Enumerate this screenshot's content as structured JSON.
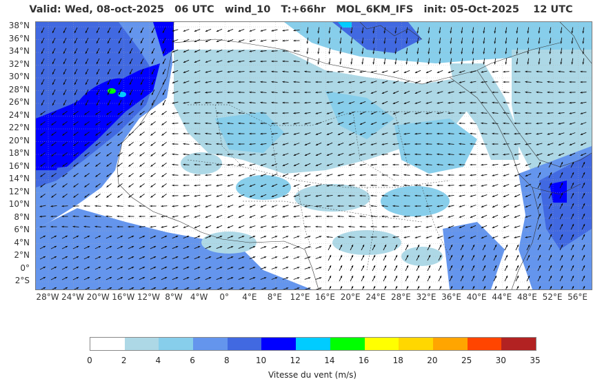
{
  "title": "Valid: Wed, 08-oct-2025   06 UTC   wind_10   T:+66hr   MOL_6KM_IFS   init: 05-Oct-2025    12 UTC",
  "map": {
    "lat_labels": [
      "38°N",
      "36°N",
      "34°N",
      "32°N",
      "30°N",
      "28°N",
      "26°N",
      "24°N",
      "22°N",
      "20°N",
      "18°N",
      "16°N",
      "14°N",
      "12°N",
      "10°N",
      "8°N",
      "6°N",
      "4°N",
      "2°N",
      "0°",
      "2°S"
    ],
    "lon_labels": [
      "28°W",
      "24°W",
      "20°W",
      "16°W",
      "12°W",
      "8°W",
      "4°W",
      "0°",
      "4°E",
      "8°E",
      "12°E",
      "16°E",
      "20°E",
      "24°E",
      "28°E",
      "32°E",
      "36°E",
      "40°E",
      "44°E",
      "48°E",
      "52°E",
      "56°E"
    ],
    "colors": {
      "land_calm": "#ffffff",
      "light": "#add8e6",
      "sky": "#87ceeb",
      "medium": "#6495ed",
      "royal": "#4169e1",
      "blue": "#0000ff",
      "cyan": "#00ccff",
      "green": "#00ff00"
    }
  },
  "colorbar": {
    "title": "Vitesse du vent (m/s)",
    "ticks": [
      "0",
      "2",
      "4",
      "6",
      "8",
      "10",
      "12",
      "14",
      "16",
      "18",
      "20",
      "25",
      "30",
      "35"
    ],
    "colors": [
      "#ffffff",
      "#add8e6",
      "#87ceeb",
      "#6495ed",
      "#4169e1",
      "#0000ff",
      "#00ccff",
      "#00ff00",
      "#ffff00",
      "#ffd700",
      "#ffa500",
      "#ff4500",
      "#b22222"
    ]
  }
}
